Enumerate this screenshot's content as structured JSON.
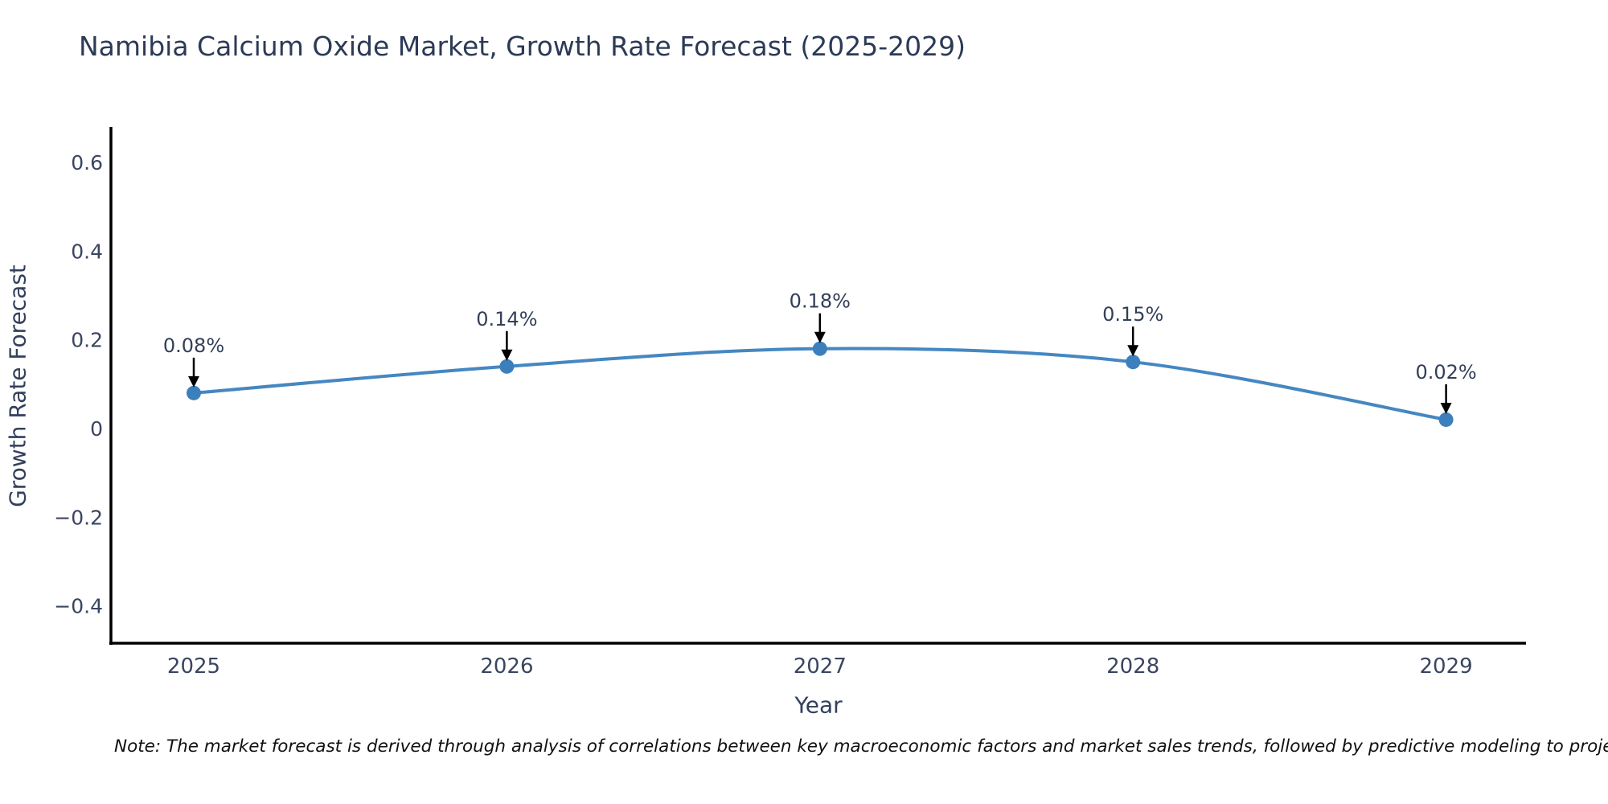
{
  "title": "Namibia Calcium Oxide Market, Growth Rate Forecast (2025-2029)",
  "note": "Note: The market forecast is derived through analysis of correlations between key macroeconomic factors and market sales trends, followed by predictive modeling to project future sa",
  "chart_data": {
    "type": "line",
    "title": "Namibia Calcium Oxide Market, Growth Rate Forecast (2025-2029)",
    "xlabel": "Year",
    "ylabel": "Growth Rate Forecast",
    "x": [
      2025,
      2026,
      2027,
      2028,
      2029
    ],
    "x_tick_labels": [
      "2025",
      "2026",
      "2027",
      "2028",
      "2029"
    ],
    "series": [
      {
        "name": "Growth Rate Forecast",
        "values": [
          0.08,
          0.14,
          0.18,
          0.15,
          0.02
        ]
      }
    ],
    "point_labels": [
      "0.08%",
      "0.14%",
      "0.18%",
      "0.15%",
      "0.02%"
    ],
    "y_ticks": [
      0.6,
      0.4,
      0.2,
      0,
      -0.2,
      -0.4
    ],
    "y_tick_labels": [
      "0.6",
      "0.4",
      "0.2",
      "0",
      "−0.2",
      "−0.4"
    ],
    "ylim": [
      -0.48,
      0.68
    ],
    "xlim": [
      2024.74,
      2029.26
    ],
    "grid": false,
    "legend": false,
    "line_color": "#4587c1",
    "marker_color": "#3c7fbd",
    "spine_color": "#000000",
    "tick_label_color": "#3a4560",
    "annotation_text_color": "#333f58",
    "annotation_arrow_color": "#000000",
    "curve_smooth": true
  }
}
